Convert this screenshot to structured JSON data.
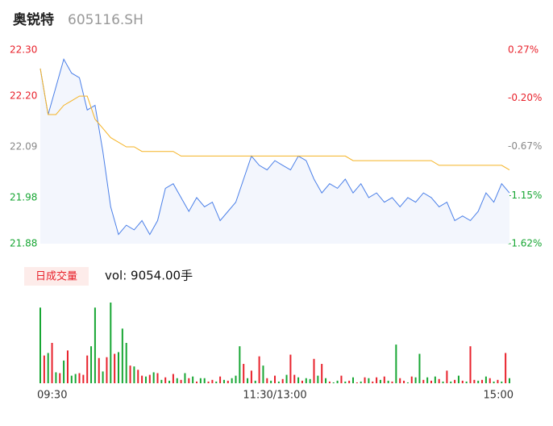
{
  "header": {
    "name": "奥锐特",
    "code": "605116.SH"
  },
  "volume_label": "日成交量",
  "volume_text": "vol: 9054.00手",
  "chart_data": [
    {
      "type": "line",
      "xlim": [
        0,
        240
      ],
      "ylim": [
        21.88,
        22.3
      ],
      "yticks": [
        {
          "value": 22.3,
          "label": "22.30"
        },
        {
          "value": 22.2,
          "label": "22.20"
        },
        22.09,
        21.98,
        21.88
      ],
      "y2lim": [
        -1.62,
        0.27
      ],
      "y2ticks": [
        {
          "value": 0.27,
          "label": "0.27%"
        },
        {
          "value": -0.2,
          "label": "-0.20%"
        },
        {
          "value": -0.67,
          "label": "-0.67%"
        },
        {
          "value": -1.15,
          "label": "-1.15%"
        },
        {
          "value": -1.62,
          "label": "-1.62%"
        }
      ],
      "tick_colors": {
        "up": "#e8212b",
        "flat": "#888888",
        "down": "#17a633"
      },
      "x": [
        0,
        4,
        8,
        12,
        16,
        20,
        24,
        28,
        32,
        36,
        40,
        44,
        48,
        52,
        56,
        60,
        64,
        68,
        72,
        76,
        80,
        84,
        88,
        92,
        96,
        100,
        104,
        108,
        112,
        116,
        120,
        124,
        128,
        132,
        136,
        140,
        144,
        148,
        152,
        156,
        160,
        164,
        168,
        172,
        176,
        180,
        184,
        188,
        192,
        196,
        200,
        204,
        208,
        212,
        216,
        220,
        224,
        228,
        232,
        236,
        240
      ],
      "series": [
        {
          "color": "#4a7fe8",
          "fill": "#f3f6fd",
          "values": [
            22.26,
            22.16,
            22.22,
            22.28,
            22.25,
            22.24,
            22.17,
            22.18,
            22.08,
            21.96,
            21.9,
            21.92,
            21.91,
            21.93,
            21.9,
            21.93,
            22.0,
            22.01,
            21.98,
            21.95,
            21.98,
            21.96,
            21.97,
            21.93,
            21.95,
            21.97,
            22.02,
            22.07,
            22.05,
            22.04,
            22.06,
            22.05,
            22.04,
            22.07,
            22.06,
            22.02,
            21.99,
            22.01,
            22.0,
            22.02,
            21.99,
            22.01,
            21.98,
            21.99,
            21.97,
            21.98,
            21.96,
            21.98,
            21.97,
            21.99,
            21.98,
            21.96,
            21.97,
            21.93,
            21.94,
            21.93,
            21.95,
            21.99,
            21.97,
            22.01,
            21.99
          ]
        },
        {
          "color": "#f5b324",
          "values": [
            22.26,
            22.16,
            22.16,
            22.18,
            22.19,
            22.2,
            22.2,
            22.15,
            22.13,
            22.11,
            22.1,
            22.09,
            22.09,
            22.08,
            22.08,
            22.08,
            22.08,
            22.08,
            22.07,
            22.07,
            22.07,
            22.07,
            22.07,
            22.07,
            22.07,
            22.07,
            22.07,
            22.07,
            22.07,
            22.07,
            22.07,
            22.07,
            22.07,
            22.07,
            22.07,
            22.07,
            22.07,
            22.07,
            22.07,
            22.07,
            22.06,
            22.06,
            22.06,
            22.06,
            22.06,
            22.06,
            22.06,
            22.06,
            22.06,
            22.06,
            22.06,
            22.05,
            22.05,
            22.05,
            22.05,
            22.05,
            22.05,
            22.05,
            22.05,
            22.05,
            22.04
          ]
        }
      ]
    },
    {
      "type": "bar",
      "xlim": [
        0,
        240
      ],
      "xticks": [
        {
          "value": 0,
          "label": "09:30"
        },
        {
          "value": 120,
          "label": "11:30/13:00"
        },
        {
          "value": 240,
          "label": "15:00"
        }
      ],
      "up_color": "#e8212b",
      "down_color": "#17a633",
      "x": [
        0,
        2,
        4,
        6,
        8,
        10,
        12,
        14,
        16,
        18,
        20,
        22,
        24,
        26,
        28,
        30,
        32,
        34,
        36,
        38,
        40,
        42,
        44,
        46,
        48,
        50,
        52,
        54,
        56,
        58,
        60,
        62,
        64,
        66,
        68,
        70,
        72,
        74,
        76,
        78,
        80,
        82,
        84,
        86,
        88,
        90,
        92,
        94,
        96,
        98,
        100,
        102,
        104,
        106,
        108,
        110,
        112,
        114,
        116,
        118,
        120,
        122,
        124,
        126,
        128,
        130,
        132,
        134,
        136,
        138,
        140,
        142,
        144,
        146,
        148,
        150,
        152,
        154,
        156,
        158,
        160,
        162,
        164,
        166,
        168,
        170,
        172,
        174,
        176,
        178,
        180,
        182,
        184,
        186,
        188,
        190,
        192,
        194,
        196,
        198,
        200,
        202,
        204,
        206,
        208,
        210,
        212,
        214,
        216,
        218,
        220,
        222,
        224,
        226,
        228,
        230,
        232,
        234,
        236,
        238,
        240
      ],
      "values": [
        900,
        330,
        360,
        480,
        130,
        120,
        270,
        390,
        90,
        110,
        120,
        100,
        330,
        440,
        900,
        300,
        140,
        310,
        960,
        350,
        370,
        650,
        480,
        210,
        200,
        160,
        90,
        80,
        100,
        130,
        120,
        40,
        70,
        30,
        110,
        60,
        40,
        120,
        60,
        80,
        20,
        60,
        60,
        20,
        40,
        20,
        80,
        40,
        30,
        60,
        90,
        440,
        230,
        60,
        150,
        30,
        320,
        210,
        60,
        30,
        90,
        20,
        50,
        100,
        340,
        100,
        70,
        30,
        60,
        50,
        290,
        90,
        230,
        60,
        20,
        10,
        30,
        90,
        20,
        30,
        70,
        10,
        20,
        70,
        60,
        20,
        70,
        40,
        80,
        30,
        20,
        460,
        60,
        30,
        10,
        80,
        70,
        350,
        40,
        70,
        30,
        80,
        50,
        20,
        150,
        20,
        40,
        90,
        30,
        20,
        440,
        40,
        30,
        40,
        80,
        60,
        20,
        40,
        20,
        360,
        60
      ],
      "rising": [
        false,
        true,
        false,
        true,
        false,
        true,
        false,
        true,
        false,
        false,
        true,
        true,
        true,
        false,
        false,
        true,
        false,
        true,
        false,
        true,
        false,
        false,
        false,
        true,
        false,
        true,
        true,
        false,
        true,
        false,
        true,
        false,
        true,
        false,
        true,
        false,
        true,
        false,
        true,
        false,
        true,
        false,
        false,
        true,
        true,
        false,
        true,
        false,
        true,
        false,
        false,
        false,
        true,
        false,
        true,
        false,
        true,
        false,
        true,
        false,
        true,
        false,
        true,
        false,
        true,
        true,
        false,
        true,
        false,
        false,
        true,
        false,
        true,
        false,
        true,
        false,
        false,
        true,
        false,
        true,
        false,
        true,
        false,
        true,
        false,
        true,
        true,
        false,
        true,
        false,
        true,
        false,
        true,
        true,
        false,
        true,
        false,
        false,
        true,
        false,
        true,
        false,
        true,
        false,
        true,
        false,
        true,
        false,
        true,
        false,
        true,
        true,
        false,
        true,
        false,
        true,
        false,
        true,
        false,
        true,
        false
      ]
    }
  ]
}
